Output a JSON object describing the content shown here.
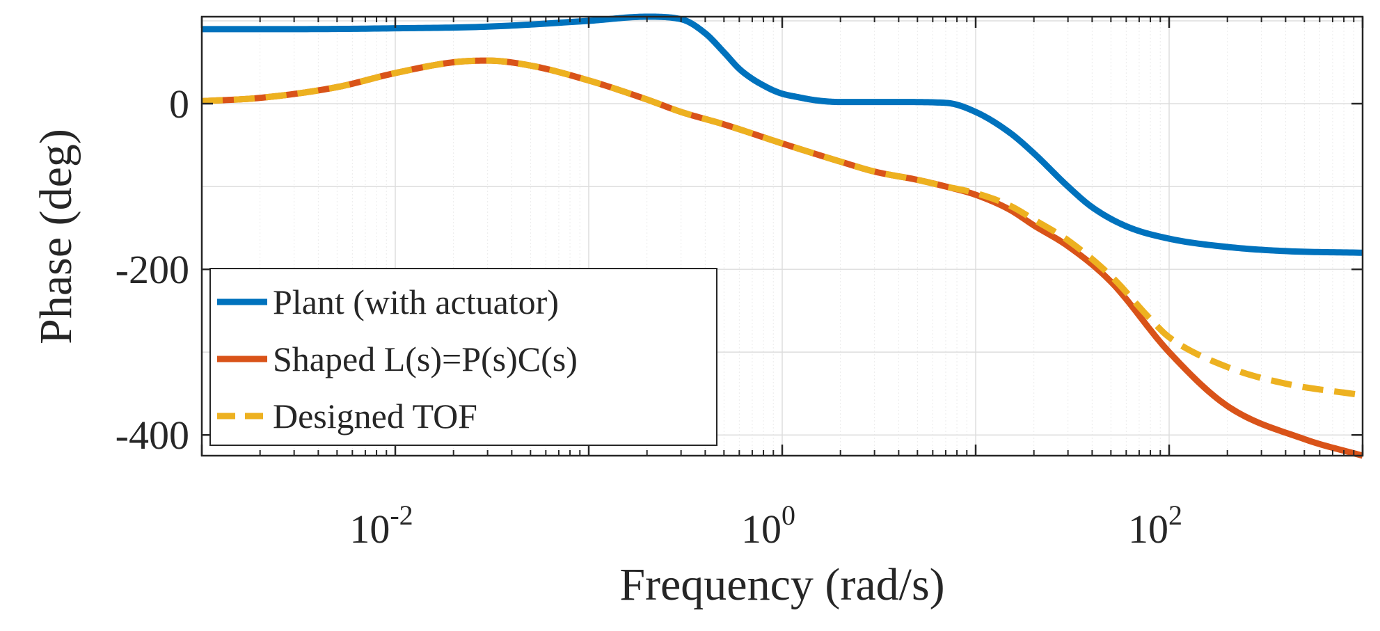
{
  "chart_data": {
    "type": "line",
    "xscale": "log",
    "xlabel": "Frequency (rad/s)",
    "ylabel": "Phase (deg)",
    "xlim": [
      0.001,
      1000
    ],
    "ylim": [
      -425,
      105
    ],
    "grid": true,
    "x_ticks": [
      {
        "value": 0.01,
        "base": "10",
        "exp": "-2"
      },
      {
        "value": 1,
        "base": "10",
        "exp": "0"
      },
      {
        "value": 100,
        "base": "10",
        "exp": "2"
      }
    ],
    "y_ticks": [
      {
        "value": 0,
        "label": "0"
      },
      {
        "value": -200,
        "label": "-200"
      },
      {
        "value": -400,
        "label": "-400"
      }
    ],
    "legend_position": "bottom-left",
    "series": [
      {
        "name": "Plant (with actuator)",
        "color": "#0072BD",
        "dash": false,
        "x": [
          0.001,
          0.003,
          0.01,
          0.03,
          0.1,
          0.2,
          0.3,
          0.4,
          0.5,
          0.6,
          0.7,
          0.8,
          0.9,
          1.0,
          1.2,
          1.5,
          2,
          4,
          7,
          10,
          15,
          20,
          30,
          40,
          60,
          100,
          200,
          400,
          1000
        ],
        "y": [
          90,
          90,
          91,
          93,
          100,
          105,
          102,
          85,
          62,
          42,
          30,
          22,
          16,
          12,
          8,
          4,
          2,
          2,
          1,
          -10,
          -35,
          -60,
          -100,
          -125,
          -148,
          -163,
          -173,
          -178,
          -180
        ]
      },
      {
        "name": "Shaped L(s)=P(s)C(s)",
        "color": "#D95319",
        "dash": false,
        "x": [
          0.001,
          0.002,
          0.005,
          0.01,
          0.02,
          0.03,
          0.05,
          0.1,
          0.2,
          0.3,
          0.5,
          1,
          2,
          3,
          5,
          7,
          10,
          15,
          20,
          30,
          50,
          100,
          200,
          500,
          1000
        ],
        "y": [
          3,
          7,
          20,
          37,
          50,
          52,
          46,
          28,
          5,
          -10,
          -25,
          -48,
          -70,
          -82,
          -92,
          -100,
          -110,
          -128,
          -147,
          -172,
          -215,
          -300,
          -365,
          -405,
          -425
        ]
      },
      {
        "name": "Designed TOF",
        "color": "#EDB120",
        "dash": true,
        "x": [
          0.001,
          0.002,
          0.005,
          0.01,
          0.02,
          0.03,
          0.05,
          0.1,
          0.2,
          0.3,
          0.5,
          1,
          2,
          3,
          5,
          7,
          10,
          15,
          20,
          30,
          50,
          80,
          100,
          200,
          400,
          1000
        ],
        "y": [
          3,
          7,
          20,
          37,
          50,
          52,
          46,
          28,
          5,
          -10,
          -25,
          -48,
          -70,
          -82,
          -92,
          -100,
          -108,
          -123,
          -140,
          -165,
          -208,
          -260,
          -282,
          -318,
          -338,
          -352
        ]
      }
    ]
  }
}
